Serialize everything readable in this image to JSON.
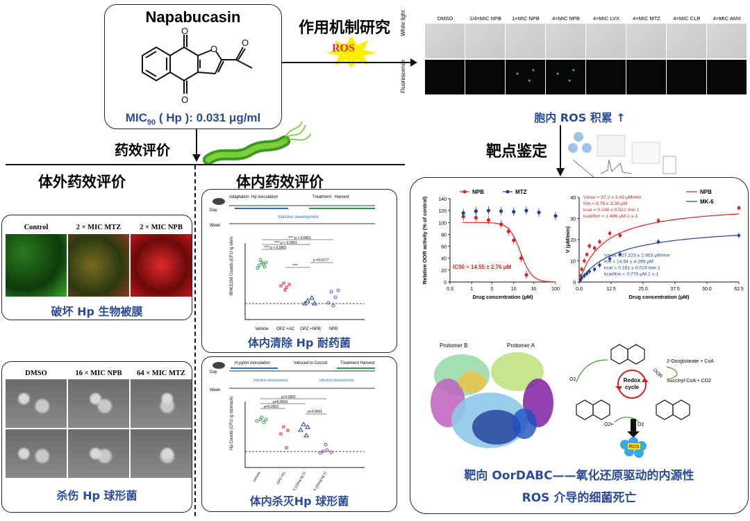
{
  "compound": {
    "name": "Napabucasin",
    "mic_prefix": "MIC",
    "mic_sub": "90",
    "mic_rest": " ( Hp ): 0.031 μg/ml"
  },
  "arrows": {
    "mechanism": "作用机制研究",
    "ros_burst": "ROS",
    "efficacy": "药效评价",
    "target_id": "靶点鉴定"
  },
  "headings": {
    "in_vitro": "体外药效评价",
    "in_vivo": "体内药效评价"
  },
  "ros_panel": {
    "columns": [
      "DMSO",
      "1/4×MIC NPB",
      "1×MIC NPB",
      "4×MIC NPB",
      "4×MIC LVX",
      "4×MIC MTZ",
      "4×MIC CLR",
      "4×MIC AMX"
    ],
    "rows": [
      "White light",
      "Fluorescence"
    ],
    "caption": "胞内 ROS 积累 ↑"
  },
  "biofilm_panel": {
    "columns": [
      "Control",
      "2 × MIC MTZ",
      "2 × MIC NPB"
    ],
    "caption": "破坏 Hp 生物被膜"
  },
  "sem_panel": {
    "columns": [
      "DMSO",
      "16 × MIC NPB",
      "64 × MIC MTZ"
    ],
    "caption": "杀伤 Hp 球形菌"
  },
  "invivo1": {
    "timeline_labels": [
      "Adaptation",
      "Hp inoculation",
      "Treatment",
      "Harvest",
      "Infection development"
    ],
    "day_label": "Day",
    "week_label": "Week",
    "day_ticks": [
      "1",
      "3",
      "6",
      "8",
      "10",
      "12",
      "14"
    ],
    "week_ticks": [
      "0",
      "1",
      "2",
      "3",
      "4",
      "5",
      "6",
      "7",
      "8"
    ],
    "ylabel": "BHKS159 Counts (CFU /g stomach)",
    "groups": [
      "Vehicle",
      "OPZ +AC",
      "OPZ +NPB",
      "NPB"
    ],
    "sig": [
      "**** p < 0.0001",
      "**** p < 0.0001",
      "**** p < 0.0001",
      "****",
      "p =0.0177",
      "p < 0.0001"
    ],
    "caption": "体内清除 Hp 耐药菌"
  },
  "invivo2": {
    "timeline_labels": [
      "H.pylori inoculation",
      "Induced to Coccid",
      "Treatment",
      "Harvest",
      "Infection development",
      "Infection development"
    ],
    "day_label": "Day",
    "week_label": "Week",
    "ylabel": "Hp Counts (CFU /g stomach)",
    "groups": [
      "Vehicle",
      "OPZ+AC",
      "OPZ+NPB (10mg kg-1)",
      "OPZ+NPB (20mg kg-1)"
    ],
    "sig": [
      "p<0.0001",
      "p=0.0034",
      "p<0.0001",
      "p=0.0303"
    ],
    "caption": "体内杀灭Hp 球形菌"
  },
  "target_panel": {
    "caption_line1": "靶向 OorDABC——氧化还原驱动的内源性",
    "caption_line2": "ROS 介导的细菌死亡",
    "protomer_b": "Protomer B",
    "protomer_a": "Protomer A",
    "redox_label": "Redox cycle",
    "oor_label": "OOR",
    "substrates": "2-Oxoglutarate + CoA",
    "products": "Succinyl-CoA + CO2",
    "o2": "O2",
    "o2_rad": "O2•-",
    "ros": "ROS"
  },
  "chart_data": [
    {
      "type": "line",
      "title": "",
      "xlabel": "Drug concentration (μM)",
      "ylabel": "Relative OOR activity (% of control)",
      "xscale": "log",
      "xlim": [
        0.3,
        100
      ],
      "ylim": [
        0,
        140
      ],
      "xticks": [
        "0.3",
        "1",
        "3",
        "10",
        "30",
        "100"
      ],
      "yticks": [
        "0",
        "20",
        "40",
        "60",
        "80",
        "100",
        "120",
        "140"
      ],
      "series": [
        {
          "name": "NPB",
          "color": "#e02020",
          "x": [
            0.625,
            1.25,
            2.5,
            5,
            7.5,
            10,
            15,
            20
          ],
          "y": [
            110,
            108,
            104,
            97,
            85,
            70,
            40,
            12
          ]
        },
        {
          "name": "MTZ",
          "color": "#1f3f99",
          "x": [
            0.625,
            1.25,
            2.5,
            5,
            10,
            20,
            40,
            100
          ],
          "y": [
            116,
            119,
            120,
            119,
            118,
            120,
            117,
            111
          ]
        }
      ],
      "annotation": "IC50 = 14.55 ± 2.76 μM"
    },
    {
      "type": "line",
      "xlabel": "Drug concentration (μM)",
      "ylabel": "V (μM/min)",
      "xlim": [
        0,
        62.5
      ],
      "ylim": [
        0,
        40
      ],
      "xticks": [
        "0.0",
        "12.5",
        "25.0",
        "37.5",
        "50.0",
        "62.5"
      ],
      "yticks": [
        "0",
        "10",
        "20",
        "30",
        "40"
      ],
      "series": [
        {
          "name": "NPB",
          "color": "#e02020",
          "x": [
            0.5,
            1,
            2,
            3,
            4,
            6,
            8,
            12,
            16,
            31,
            62.5
          ],
          "y": [
            3,
            6,
            10,
            13,
            17,
            16,
            19,
            23,
            22,
            29,
            35
          ]
        },
        {
          "name": "MK-6",
          "color": "#1f3f99",
          "x": [
            0.5,
            1,
            2,
            3,
            4,
            6,
            8,
            12,
            16,
            31,
            62.5
          ],
          "y": [
            1,
            2,
            3,
            4,
            5,
            6,
            8,
            11,
            13,
            19,
            22
          ]
        }
      ],
      "annotations": {
        "npb": [
          "Vmax = 37.2 ± 3.43 μM/min",
          "Km = 9.79 ± 3.38 μM",
          "kcat = 0.248 ± 0.022 min-1",
          "kcat/Km = 1.486 μM-1 s-1"
        ],
        "mk6": [
          "Vmax = 27.223 ± 2.853 μM/min",
          "Km = 14.54 ± 4.265 μM",
          "kcat = 0.181 ± 0.019 min-1",
          "kcat/Km = 0.773 μM-1 s-1"
        ]
      }
    }
  ],
  "colors": {
    "accent_blue": "#2b4a9a",
    "ros_yellow": "#ffee00",
    "ros_red": "#e03020",
    "npb_red": "#e02020",
    "mtz_blue": "#1f3f99"
  }
}
